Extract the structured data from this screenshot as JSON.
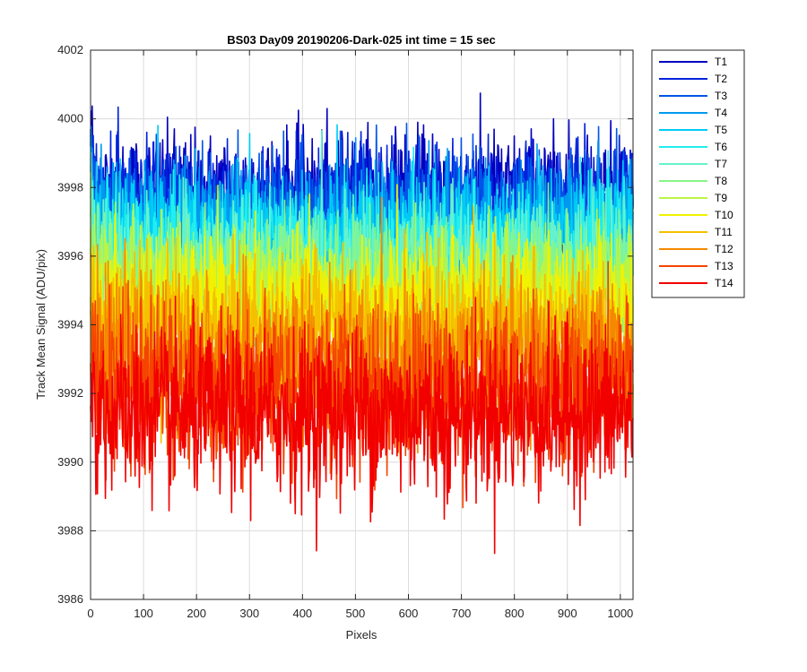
{
  "chart_data": {
    "type": "line",
    "title": "BS03 Day09 20190206-Dark-025 int time = 15 sec",
    "xlabel": "Pixels",
    "ylabel": "Track Mean Signal (ADU/pix)",
    "xlim": [
      0,
      1024
    ],
    "ylim": [
      3986,
      4002
    ],
    "x_ticks": [
      0,
      100,
      200,
      300,
      400,
      500,
      600,
      700,
      800,
      900,
      1000
    ],
    "y_ticks": [
      3986,
      3988,
      3990,
      3992,
      3994,
      3996,
      3998,
      4000,
      4002
    ],
    "grid": true,
    "legend_position": "outside-top-right",
    "n_points": 1024,
    "series": [
      {
        "name": "T1",
        "color": "#0000bf",
        "mean": 3997.8,
        "noise_amplitude": 0.9
      },
      {
        "name": "T2",
        "color": "#0022dd",
        "mean": 3997.5,
        "noise_amplitude": 0.9
      },
      {
        "name": "T3",
        "color": "#0055e8",
        "mean": 3997.2,
        "noise_amplitude": 0.9
      },
      {
        "name": "T4",
        "color": "#0099f0",
        "mean": 3996.9,
        "noise_amplitude": 0.9
      },
      {
        "name": "T5",
        "color": "#00ccf5",
        "mean": 3996.6,
        "noise_amplitude": 0.9
      },
      {
        "name": "T6",
        "color": "#22eeee",
        "mean": 3996.2,
        "noise_amplitude": 0.9
      },
      {
        "name": "T7",
        "color": "#66f2cc",
        "mean": 3995.8,
        "noise_amplitude": 0.9
      },
      {
        "name": "T8",
        "color": "#88f588",
        "mean": 3995.4,
        "noise_amplitude": 0.9
      },
      {
        "name": "T9",
        "color": "#bbf544",
        "mean": 3995.0,
        "noise_amplitude": 0.9
      },
      {
        "name": "T10",
        "color": "#f2f200",
        "mean": 3994.5,
        "noise_amplitude": 1.0
      },
      {
        "name": "T11",
        "color": "#f5c000",
        "mean": 3993.8,
        "noise_amplitude": 1.1
      },
      {
        "name": "T12",
        "color": "#f58800",
        "mean": 3993.0,
        "noise_amplitude": 1.1
      },
      {
        "name": "T13",
        "color": "#f54400",
        "mean": 3992.2,
        "noise_amplitude": 1.2
      },
      {
        "name": "T14",
        "color": "#f20000",
        "mean": 3991.4,
        "noise_amplitude": 1.2
      }
    ]
  }
}
